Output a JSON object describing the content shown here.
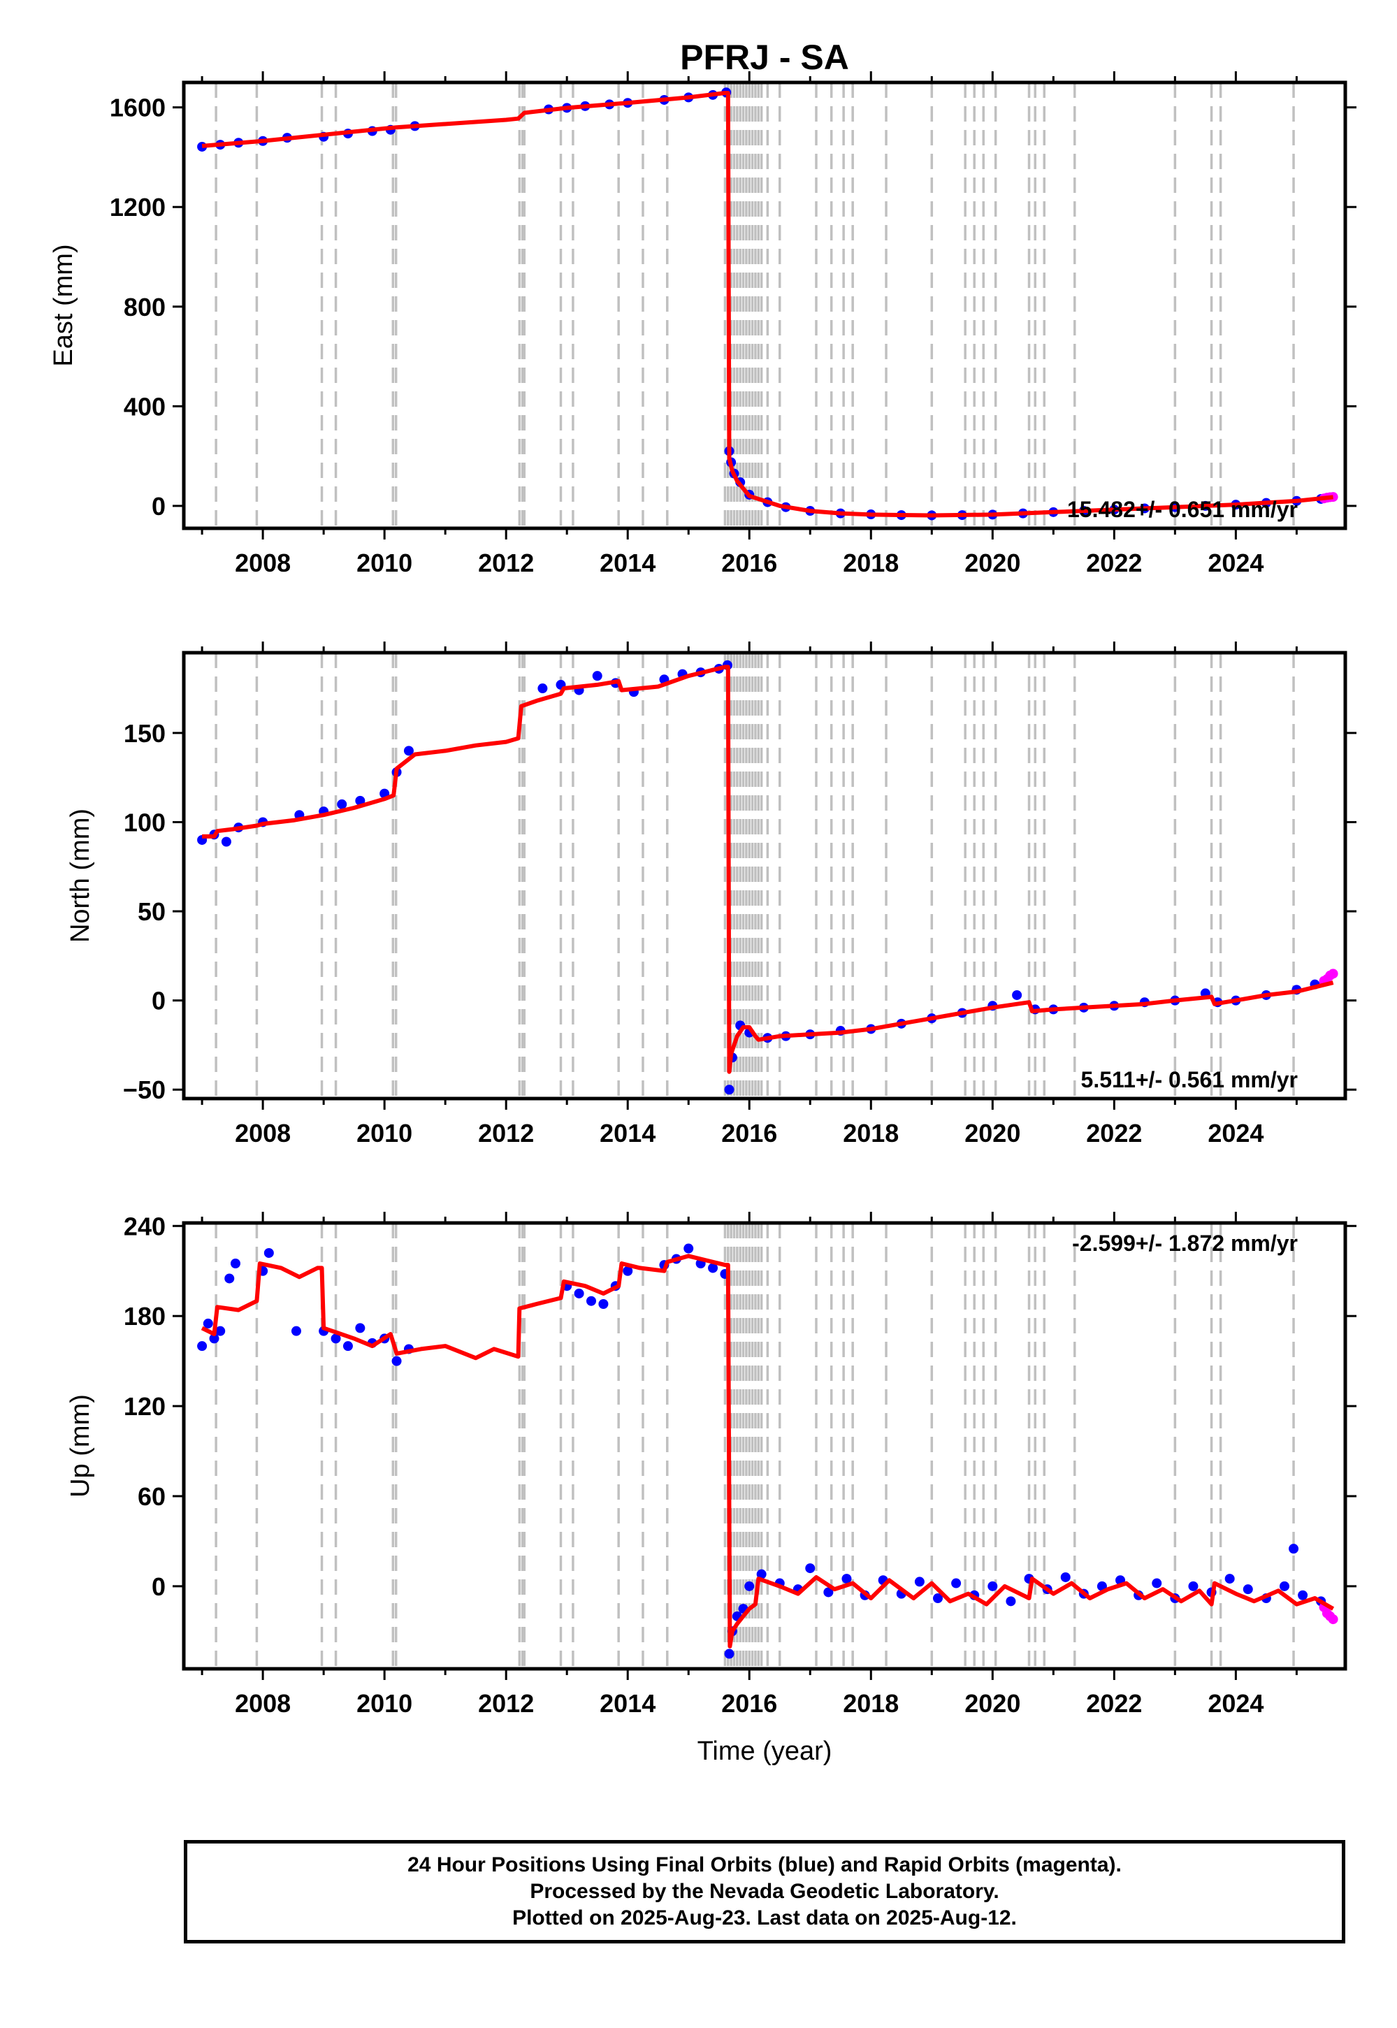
{
  "title": "PFRJ - SA",
  "colors": {
    "final": "#0000ff",
    "rapid": "#ff00ff",
    "model": "#ff0000",
    "event": "#c0c0c0"
  },
  "event_lines": [
    2007.23,
    2007.9,
    2008.97,
    2009.2,
    2010.14,
    2010.19,
    2012.22,
    2012.27,
    2012.3,
    2012.9,
    2013.1,
    2013.85,
    2014.25,
    2014.65,
    2015.6,
    2015.65,
    2015.7,
    2015.75,
    2015.8,
    2015.85,
    2015.9,
    2015.95,
    2016.0,
    2016.05,
    2016.1,
    2016.15,
    2016.2,
    2016.3,
    2016.5,
    2017.1,
    2017.35,
    2017.55,
    2017.7,
    2018.25,
    2019.0,
    2019.55,
    2019.7,
    2019.85,
    2020.05,
    2020.6,
    2020.7,
    2020.85,
    2021.35,
    2023.0,
    2023.6,
    2023.75,
    2024.95
  ],
  "chart_data": [
    {
      "type": "scatter",
      "component": "east",
      "ylabel": "East (mm)",
      "xlim": [
        2006.7,
        2025.8
      ],
      "ylim": [
        -90,
        1700
      ],
      "yticks": [
        0,
        400,
        800,
        1200,
        1600
      ],
      "xticks": [
        2008,
        2010,
        2012,
        2014,
        2016,
        2018,
        2020,
        2022,
        2024
      ],
      "rate_label": "15.482+/- 0.651 mm/yr",
      "model_x": [
        2007.0,
        2008.0,
        2010.0,
        2010.2,
        2012.0,
        2012.2,
        2012.3,
        2013.0,
        2014.0,
        2015.0,
        2015.6,
        2015.65,
        2015.67,
        2015.72,
        2015.8,
        2016.0,
        2016.5,
        2017.0,
        2017.5,
        2018.0,
        2019.0,
        2020.0,
        2021.0,
        2022.0,
        2023.0,
        2024.0,
        2025.0,
        2025.6
      ],
      "model_y": [
        1445,
        1465,
        1515,
        1520,
        1550,
        1555,
        1578,
        1598,
        1618,
        1640,
        1658,
        1658,
        190,
        140,
        100,
        40,
        0,
        -20,
        -30,
        -35,
        -38,
        -35,
        -25,
        -15,
        -5,
        5,
        20,
        35
      ],
      "final_x": [
        2007.0,
        2007.3,
        2007.6,
        2008.0,
        2008.4,
        2009.0,
        2009.4,
        2009.8,
        2010.1,
        2010.5,
        2012.7,
        2013.0,
        2013.3,
        2013.7,
        2014.0,
        2014.6,
        2015.0,
        2015.4,
        2015.62,
        2015.67,
        2015.7,
        2015.75,
        2015.85,
        2016.0,
        2016.3,
        2016.6,
        2017.0,
        2017.5,
        2018.0,
        2018.5,
        2019.0,
        2019.5,
        2020.0,
        2020.5,
        2021.0,
        2021.5,
        2022.0,
        2022.5,
        2023.0,
        2023.5,
        2024.0,
        2024.5,
        2025.0,
        2025.4
      ],
      "final_y": [
        1442,
        1450,
        1458,
        1465,
        1478,
        1482,
        1495,
        1505,
        1510,
        1525,
        1592,
        1598,
        1605,
        1612,
        1618,
        1630,
        1640,
        1650,
        1660,
        220,
        175,
        130,
        95,
        45,
        15,
        -5,
        -20,
        -30,
        -34,
        -37,
        -38,
        -37,
        -35,
        -30,
        -25,
        -20,
        -15,
        -10,
        -5,
        0,
        5,
        12,
        20,
        28
      ],
      "rapid_x": [
        2025.45,
        2025.5,
        2025.55,
        2025.6
      ],
      "rapid_y": [
        30,
        33,
        35,
        36
      ]
    },
    {
      "type": "scatter",
      "component": "north",
      "ylabel": "North (mm)",
      "xlim": [
        2006.7,
        2025.8
      ],
      "ylim": [
        -55,
        195
      ],
      "yticks": [
        -50,
        0,
        50,
        100,
        150
      ],
      "xticks": [
        2008,
        2010,
        2012,
        2014,
        2016,
        2018,
        2020,
        2022,
        2024
      ],
      "rate_label": "5.511+/- 0.561 mm/yr",
      "model_x": [
        2007.0,
        2007.2,
        2007.25,
        2007.5,
        2007.9,
        2008.0,
        2008.5,
        2009.0,
        2009.5,
        2010.0,
        2010.15,
        2010.2,
        2010.5,
        2011.0,
        2011.5,
        2012.0,
        2012.2,
        2012.25,
        2012.5,
        2012.9,
        2012.95,
        2013.5,
        2013.85,
        2013.9,
        2014.5,
        2015.0,
        2015.6,
        2015.65,
        2015.67,
        2015.7,
        2015.8,
        2015.9,
        2016.0,
        2016.1,
        2016.15,
        2016.5,
        2017.0,
        2017.5,
        2018.0,
        2018.5,
        2019.0,
        2019.5,
        2020.0,
        2020.6,
        2020.65,
        2021.0,
        2021.5,
        2022.0,
        2022.5,
        2023.0,
        2023.6,
        2023.65,
        2024.0,
        2024.5,
        2025.0,
        2025.6
      ],
      "model_y": [
        92,
        92,
        95,
        96,
        98,
        99,
        101,
        104,
        108,
        113,
        115,
        130,
        138,
        140,
        143,
        145,
        147,
        165,
        168,
        172,
        175,
        177,
        179,
        174,
        176,
        182,
        187,
        187,
        -40,
        -30,
        -20,
        -15,
        -15,
        -20,
        -22,
        -20,
        -19,
        -18,
        -16,
        -13,
        -10,
        -7,
        -4,
        -1,
        -6,
        -5,
        -4,
        -3,
        -2,
        0,
        2,
        -2,
        0,
        3,
        5,
        10
      ],
      "final_x": [
        2007.0,
        2007.2,
        2007.4,
        2007.6,
        2008.0,
        2008.6,
        2009.0,
        2009.3,
        2009.6,
        2010.0,
        2010.2,
        2010.4,
        2012.6,
        2012.9,
        2013.2,
        2013.5,
        2013.8,
        2014.1,
        2014.6,
        2014.9,
        2015.2,
        2015.5,
        2015.64,
        2015.67,
        2015.72,
        2015.85,
        2016.0,
        2016.3,
        2016.6,
        2017.0,
        2017.5,
        2018.0,
        2018.5,
        2019.0,
        2019.5,
        2020.0,
        2020.4,
        2020.7,
        2021.0,
        2021.5,
        2022.0,
        2022.5,
        2023.0,
        2023.5,
        2023.7,
        2024.0,
        2024.5,
        2025.0,
        2025.3
      ],
      "final_y": [
        90,
        93,
        89,
        97,
        100,
        104,
        106,
        110,
        112,
        116,
        128,
        140,
        175,
        177,
        174,
        182,
        178,
        173,
        180,
        183,
        184,
        186,
        188,
        -50,
        -32,
        -14,
        -18,
        -21,
        -20,
        -19,
        -17,
        -16,
        -13,
        -10,
        -7,
        -3,
        3,
        -5,
        -5,
        -4,
        -3,
        -1,
        0,
        4,
        -1,
        0,
        3,
        6,
        9
      ],
      "rapid_x": [
        2025.45,
        2025.5,
        2025.55,
        2025.6
      ],
      "rapid_y": [
        11,
        12,
        14,
        15
      ]
    },
    {
      "type": "scatter",
      "component": "up",
      "ylabel": "Up (mm)",
      "xlim": [
        2006.7,
        2025.8
      ],
      "ylim": [
        -55,
        242
      ],
      "yticks": [
        0,
        60,
        120,
        180,
        240
      ],
      "xticks": [
        2008,
        2010,
        2012,
        2014,
        2016,
        2018,
        2020,
        2022,
        2024
      ],
      "rate_label": "-2.599+/- 1.872 mm/yr",
      "xlabel": "Time (year)",
      "model_x": [
        2007.0,
        2007.2,
        2007.25,
        2007.6,
        2007.9,
        2007.95,
        2008.3,
        2008.6,
        2008.9,
        2008.97,
        2009.0,
        2009.5,
        2009.8,
        2010.1,
        2010.2,
        2010.6,
        2011.0,
        2011.5,
        2011.8,
        2012.2,
        2012.22,
        2012.5,
        2012.9,
        2012.95,
        2013.3,
        2013.6,
        2013.85,
        2013.9,
        2014.2,
        2014.6,
        2014.65,
        2015.0,
        2015.6,
        2015.65,
        2015.68,
        2015.72,
        2015.8,
        2015.9,
        2016.0,
        2016.1,
        2016.15,
        2016.5,
        2016.8,
        2017.1,
        2017.4,
        2017.7,
        2018.0,
        2018.3,
        2018.7,
        2019.0,
        2019.3,
        2019.6,
        2019.9,
        2020.2,
        2020.6,
        2020.65,
        2021.0,
        2021.3,
        2021.6,
        2021.9,
        2022.2,
        2022.5,
        2022.8,
        2023.1,
        2023.4,
        2023.6,
        2023.65,
        2024.0,
        2024.3,
        2024.7,
        2025.0,
        2025.3,
        2025.6
      ],
      "model_y": [
        172,
        168,
        186,
        184,
        190,
        215,
        212,
        206,
        212,
        212,
        172,
        165,
        160,
        168,
        155,
        158,
        160,
        152,
        158,
        153,
        185,
        188,
        192,
        203,
        200,
        195,
        200,
        215,
        212,
        210,
        216,
        220,
        214,
        214,
        -40,
        -30,
        -25,
        -20,
        -15,
        -12,
        5,
        0,
        -5,
        6,
        -2,
        2,
        -8,
        4,
        -8,
        2,
        -10,
        -5,
        -12,
        0,
        -8,
        5,
        -5,
        2,
        -8,
        -2,
        2,
        -8,
        -2,
        -10,
        -3,
        -12,
        2,
        -5,
        -10,
        -3,
        -12,
        -8,
        -15
      ],
      "final_x": [
        2007.0,
        2007.1,
        2007.2,
        2007.3,
        2007.45,
        2007.55,
        2008.0,
        2008.1,
        2008.55,
        2009.0,
        2009.2,
        2009.4,
        2009.6,
        2009.8,
        2010.0,
        2010.2,
        2010.4,
        2013.0,
        2013.2,
        2013.4,
        2013.6,
        2013.8,
        2014.0,
        2014.6,
        2014.8,
        2015.0,
        2015.2,
        2015.4,
        2015.6,
        2015.67,
        2015.72,
        2015.8,
        2015.9,
        2016.0,
        2016.2,
        2016.5,
        2016.8,
        2017.0,
        2017.3,
        2017.6,
        2017.9,
        2018.2,
        2018.5,
        2018.8,
        2019.1,
        2019.4,
        2019.7,
        2020.0,
        2020.3,
        2020.6,
        2020.9,
        2021.2,
        2021.5,
        2021.8,
        2022.1,
        2022.4,
        2022.7,
        2023.0,
        2023.3,
        2023.6,
        2023.9,
        2024.2,
        2024.5,
        2024.8,
        2024.95,
        2025.1,
        2025.4
      ],
      "final_y": [
        160,
        175,
        165,
        170,
        205,
        215,
        210,
        222,
        170,
        170,
        165,
        160,
        172,
        162,
        165,
        150,
        158,
        200,
        195,
        190,
        188,
        200,
        210,
        214,
        218,
        225,
        215,
        212,
        208,
        -45,
        -30,
        -20,
        -15,
        0,
        8,
        2,
        -2,
        12,
        -4,
        5,
        -6,
        4,
        -5,
        3,
        -8,
        2,
        -6,
        0,
        -10,
        5,
        -2,
        6,
        -5,
        0,
        4,
        -6,
        2,
        -8,
        0,
        -4,
        5,
        -2,
        -8,
        0,
        25,
        -6,
        -10
      ],
      "rapid_x": [
        2025.45,
        2025.5,
        2025.55,
        2025.6
      ],
      "rapid_y": [
        -14,
        -18,
        -20,
        -22
      ]
    }
  ],
  "footer": {
    "line1": "24 Hour Positions Using Final Orbits (blue) and Rapid Orbits (magenta).",
    "line2": "Processed by the Nevada Geodetic Laboratory.",
    "line3": "Plotted on 2025-Aug-23. Last data on 2025-Aug-12."
  }
}
